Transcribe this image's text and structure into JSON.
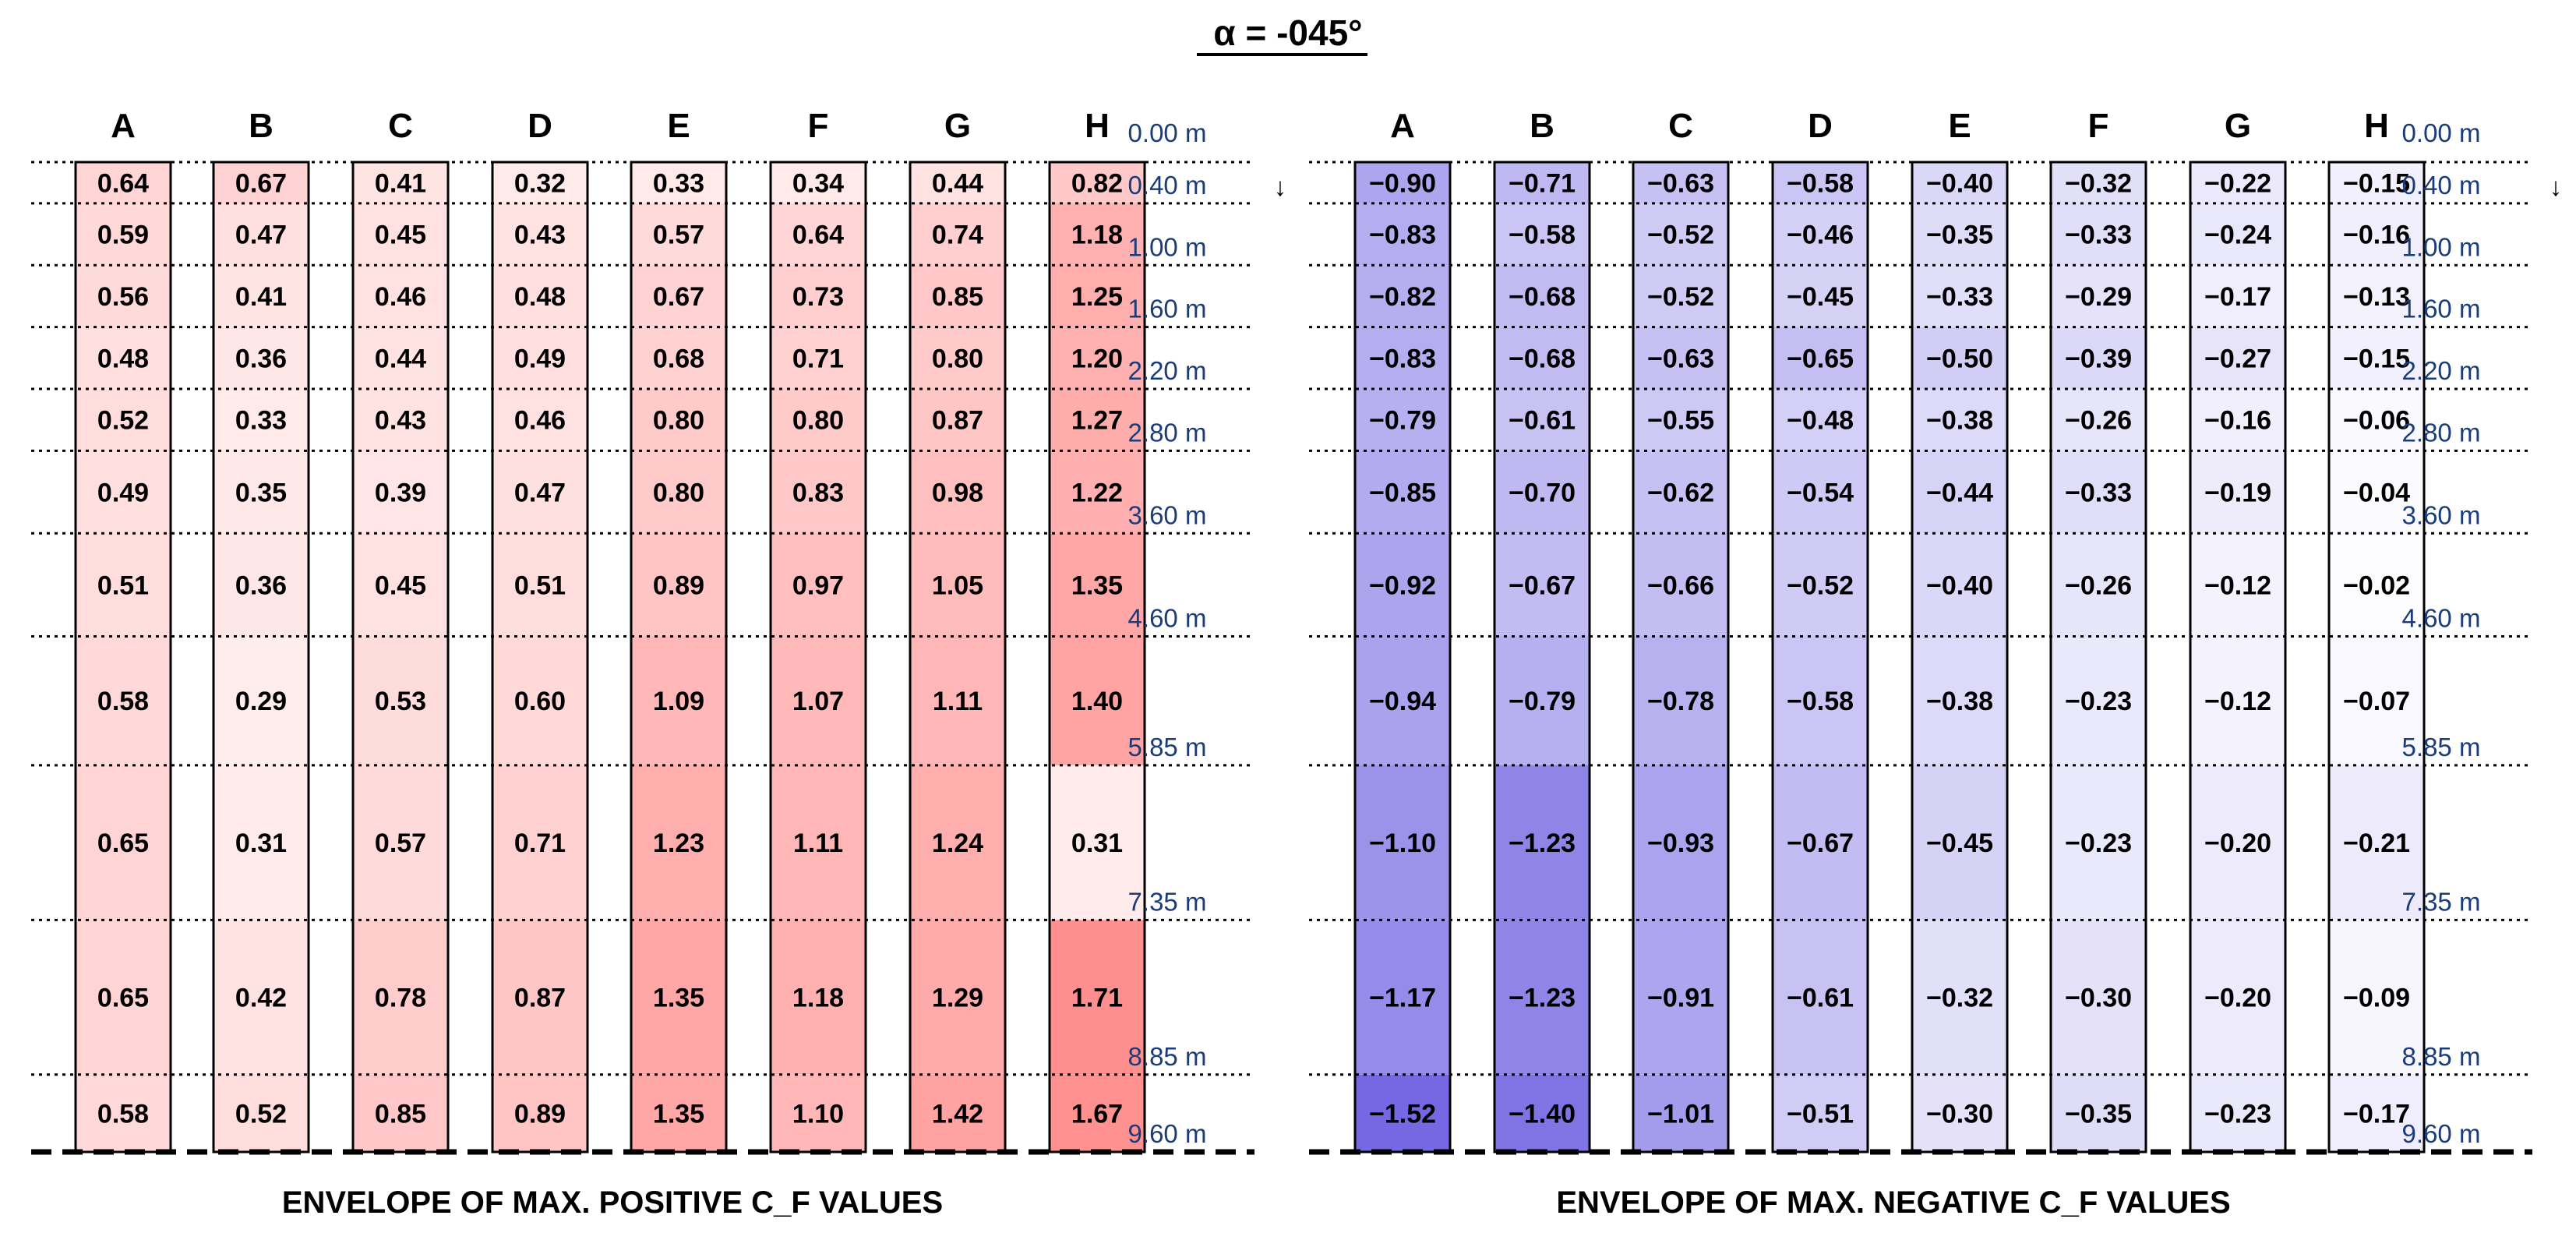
{
  "title": "α = -045°",
  "colors": {
    "positive_base": "#ff8c8c",
    "negative_base": "#6e60e0",
    "level_label": "#1a3c7a",
    "line": "#000000"
  },
  "chart_data": [
    {
      "type": "heatmap",
      "caption": "ENVELOPE OF MAX. POSITIVE C_F VALUES",
      "columns": [
        "A",
        "B",
        "C",
        "D",
        "E",
        "F",
        "G",
        "H"
      ],
      "levels": [
        "0.00 m",
        "0.40 m",
        "1.00 m",
        "1.60 m",
        "2.20 m",
        "2.80 m",
        "3.60 m",
        "4.60 m",
        "5.85 m",
        "7.35 m",
        "8.85 m",
        "9.60 m"
      ],
      "level_values_m": [
        0.0,
        0.4,
        1.0,
        1.6,
        2.2,
        2.8,
        3.6,
        4.6,
        5.85,
        7.35,
        8.85,
        9.6
      ],
      "arrow": "↓",
      "color_max": 1.75,
      "values": [
        [
          0.64,
          0.67,
          0.41,
          0.32,
          0.33,
          0.34,
          0.44,
          0.82
        ],
        [
          0.59,
          0.47,
          0.45,
          0.43,
          0.57,
          0.64,
          0.74,
          1.18
        ],
        [
          0.56,
          0.41,
          0.46,
          0.48,
          0.67,
          0.73,
          0.85,
          1.25
        ],
        [
          0.48,
          0.36,
          0.44,
          0.49,
          0.68,
          0.71,
          0.8,
          1.2
        ],
        [
          0.52,
          0.33,
          0.43,
          0.46,
          0.8,
          0.8,
          0.87,
          1.27
        ],
        [
          0.49,
          0.35,
          0.39,
          0.47,
          0.8,
          0.83,
          0.98,
          1.22
        ],
        [
          0.51,
          0.36,
          0.45,
          0.51,
          0.89,
          0.97,
          1.05,
          1.35
        ],
        [
          0.58,
          0.29,
          0.53,
          0.6,
          1.09,
          1.07,
          1.11,
          1.4
        ],
        [
          0.65,
          0.31,
          0.57,
          0.71,
          1.23,
          1.11,
          1.24,
          0.31
        ],
        [
          0.65,
          0.42,
          0.78,
          0.87,
          1.35,
          1.18,
          1.29,
          1.71
        ],
        [
          0.58,
          0.52,
          0.85,
          0.89,
          1.35,
          1.1,
          1.42,
          1.67
        ]
      ]
    },
    {
      "type": "heatmap",
      "caption": "ENVELOPE OF MAX. NEGATIVE C_F VALUES",
      "columns": [
        "A",
        "B",
        "C",
        "D",
        "E",
        "F",
        "G",
        "H"
      ],
      "levels": [
        "0.00 m",
        "0.40 m",
        "1.00 m",
        "1.60 m",
        "2.20 m",
        "2.80 m",
        "3.60 m",
        "4.60 m",
        "5.85 m",
        "7.35 m",
        "8.85 m",
        "9.60 m"
      ],
      "level_values_m": [
        0.0,
        0.4,
        1.0,
        1.6,
        2.2,
        2.8,
        3.6,
        4.6,
        5.85,
        7.35,
        8.85,
        9.6
      ],
      "arrow": "↓",
      "color_max": 1.6,
      "values": [
        [
          -0.9,
          -0.71,
          -0.63,
          -0.58,
          -0.4,
          -0.32,
          -0.22,
          -0.15
        ],
        [
          -0.83,
          -0.58,
          -0.52,
          -0.46,
          -0.35,
          -0.33,
          -0.24,
          -0.16
        ],
        [
          -0.82,
          -0.68,
          -0.52,
          -0.45,
          -0.33,
          -0.29,
          -0.17,
          -0.13
        ],
        [
          -0.83,
          -0.68,
          -0.63,
          -0.65,
          -0.5,
          -0.39,
          -0.27,
          -0.15
        ],
        [
          -0.79,
          -0.61,
          -0.55,
          -0.48,
          -0.38,
          -0.26,
          -0.16,
          -0.06
        ],
        [
          -0.85,
          -0.7,
          -0.62,
          -0.54,
          -0.44,
          -0.33,
          -0.19,
          -0.04
        ],
        [
          -0.92,
          -0.67,
          -0.66,
          -0.52,
          -0.4,
          -0.26,
          -0.12,
          -0.02
        ],
        [
          -0.94,
          -0.79,
          -0.78,
          -0.58,
          -0.38,
          -0.23,
          -0.12,
          -0.07
        ],
        [
          -1.1,
          -1.23,
          -0.93,
          -0.67,
          -0.45,
          -0.23,
          -0.2,
          -0.21
        ],
        [
          -1.17,
          -1.23,
          -0.91,
          -0.61,
          -0.32,
          -0.3,
          -0.2,
          -0.09
        ],
        [
          -1.52,
          -1.4,
          -1.01,
          -0.51,
          -0.3,
          -0.35,
          -0.23,
          -0.17
        ]
      ]
    }
  ]
}
